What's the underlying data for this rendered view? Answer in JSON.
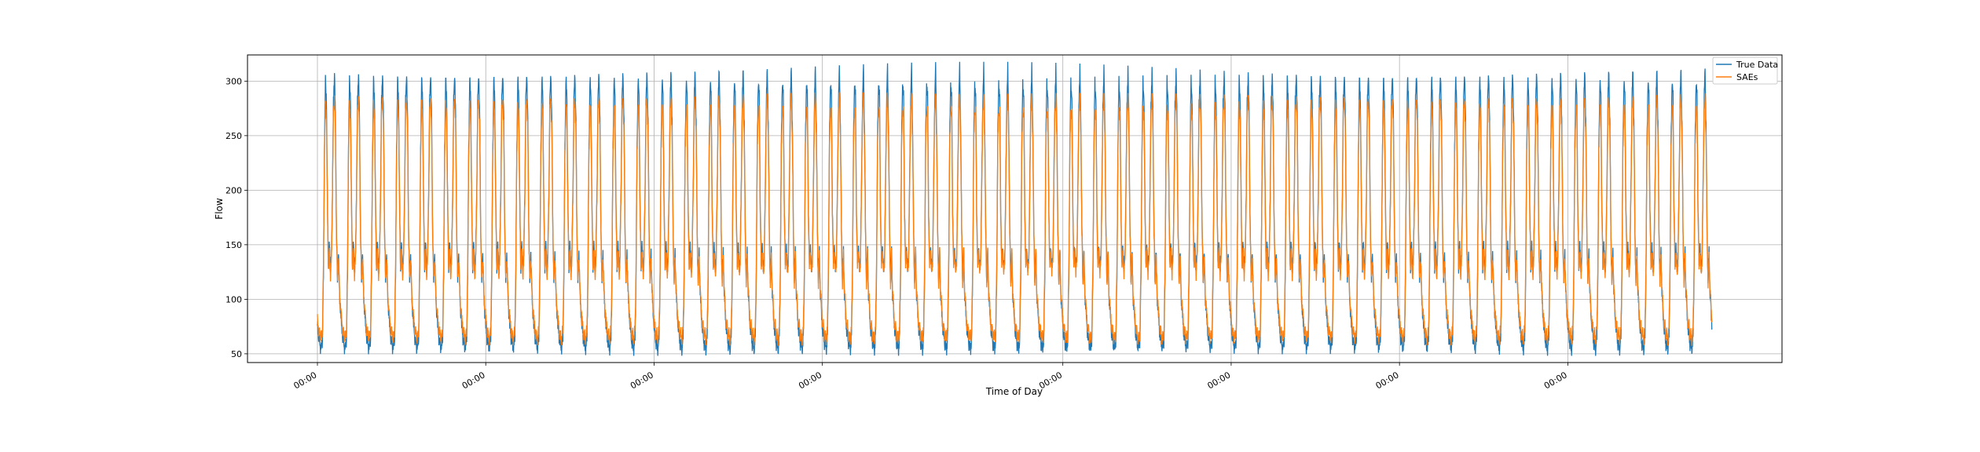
{
  "chart_data": {
    "type": "line",
    "xlabel": "Time of Day",
    "ylabel": "Flow",
    "ylim": [
      42,
      324
    ],
    "yticks": [
      50,
      100,
      150,
      200,
      250,
      300
    ],
    "x_tick_labels": [
      "00:00",
      "00:00",
      "00:00",
      "00:00",
      "00:00",
      "00:00",
      "00:00",
      "00:00"
    ],
    "grid": true,
    "legend_position": "top-right",
    "days": 58,
    "daily_pattern": {
      "hours": [
        0,
        2,
        4,
        5,
        6,
        7,
        8,
        9,
        10,
        11,
        12,
        13,
        14,
        15,
        16,
        17,
        18,
        19,
        20,
        21,
        22,
        23,
        24
      ],
      "true_values": [
        75,
        60,
        55,
        65,
        120,
        240,
        300,
        285,
        185,
        130,
        150,
        125,
        140,
        200,
        280,
        310,
        260,
        165,
        115,
        145,
        105,
        90,
        75
      ],
      "saes_values": [
        80,
        68,
        64,
        72,
        130,
        235,
        275,
        270,
        178,
        128,
        145,
        122,
        136,
        195,
        272,
        285,
        250,
        160,
        115,
        140,
        108,
        94,
        80
      ]
    },
    "series": [
      {
        "name": "True Data",
        "color": "#1f77b4"
      },
      {
        "name": "SAEs",
        "color": "#ff7f0e"
      }
    ]
  }
}
